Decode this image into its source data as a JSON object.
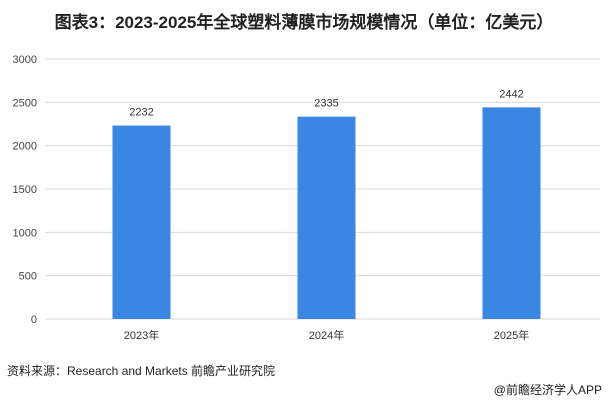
{
  "chart_data": {
    "type": "bar",
    "title": "图表3：2023-2025年全球塑料薄膜市场规模情况（单位：亿美元）",
    "categories": [
      "2023年",
      "2024年",
      "2025年"
    ],
    "values": [
      2232,
      2335,
      2442
    ],
    "data_labels": [
      "2232",
      "2335",
      "2442"
    ],
    "ylim": [
      0,
      3000
    ],
    "yticks": [
      0,
      500,
      1000,
      1500,
      2000,
      2500,
      3000
    ],
    "grid": true,
    "bar_color": "#3a86e3"
  },
  "footer": {
    "source": "资料来源：Research and Markets  前瞻产业研究院",
    "credit": "@前瞻经济学人APP"
  },
  "watermark": "前瞻产业研究院"
}
